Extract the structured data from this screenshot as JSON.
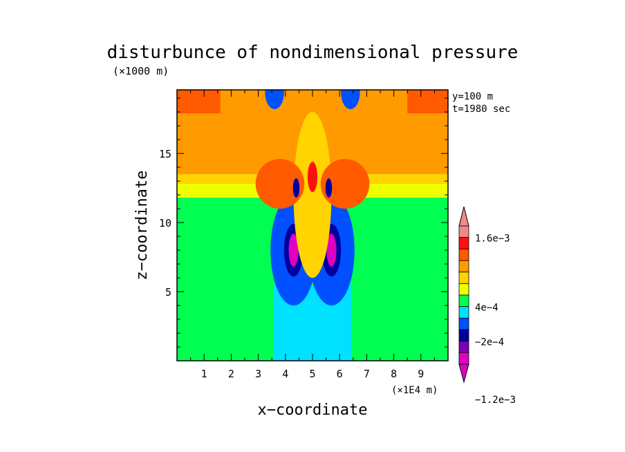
{
  "chart_data": {
    "type": "heatmap",
    "title": "disturbunce of nondimensional pressure",
    "z_unit": "(×1000 m)",
    "x_unit": "(×1E4 m)",
    "xlabel": "x−coordinate",
    "ylabel": "z−coordinate",
    "info": [
      "y=100 m",
      "t=1980 sec"
    ],
    "xlim": [
      0,
      10
    ],
    "ylim": [
      0,
      19.6
    ],
    "x_ticks": [
      "1",
      "2",
      "3",
      "4",
      "5",
      "6",
      "7",
      "8",
      "9"
    ],
    "y_ticks": [
      "5",
      "10",
      "15"
    ],
    "colorbar": {
      "labels": [
        {
          "level": 0.0016,
          "text": "1.6e−3"
        },
        {
          "level": 0.0004,
          "text": "4e−4"
        },
        {
          "level": -0.0002,
          "text": "−2e−4"
        },
        {
          "level": -0.0012,
          "text": "−1.2e−3"
        }
      ],
      "bands": [
        {
          "color": "#ef8a8a"
        },
        {
          "color": "#ff1010"
        },
        {
          "color": "#ff5a00"
        },
        {
          "color": "#ff9a00"
        },
        {
          "color": "#ffd400"
        },
        {
          "color": "#f0ff00"
        },
        {
          "color": "#00ff50"
        },
        {
          "color": "#00e0ff"
        },
        {
          "color": "#0050ff"
        },
        {
          "color": "#0000a0"
        },
        {
          "color": "#7a00b0"
        },
        {
          "color": "#e000c0"
        }
      ]
    },
    "regions": [
      {
        "color": "#00ff50",
        "x": [
          0,
          10
        ],
        "z": [
          0,
          11.8
        ]
      },
      {
        "color": "#00e0ff",
        "x": [
          3.55,
          6.45
        ],
        "z": [
          0,
          5.5
        ]
      },
      {
        "color": "#ffd400",
        "x": [
          0,
          10
        ],
        "z": [
          11.8,
          13.5
        ]
      },
      {
        "color": "#f0ff00",
        "x": [
          0,
          10
        ],
        "z": [
          11.8,
          12.8
        ]
      },
      {
        "color": "#ff9a00",
        "x": [
          0,
          10
        ],
        "z": [
          13.5,
          19.6
        ]
      },
      {
        "color": "#ff5a00",
        "x": [
          0,
          1.6
        ],
        "z": [
          17.9,
          19.6
        ]
      },
      {
        "color": "#ff5a00",
        "x": [
          8.5,
          10
        ],
        "z": [
          17.9,
          19.6
        ]
      }
    ]
  }
}
